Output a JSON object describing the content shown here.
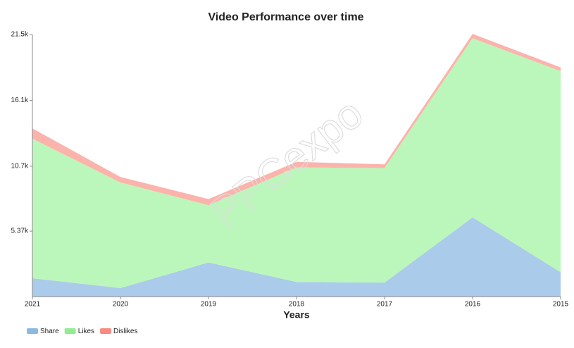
{
  "chart_data": {
    "type": "stacked_area",
    "title": "Video Performance over time",
    "x_label": "Years",
    "watermark": "PPCexpo",
    "categories": [
      "2021",
      "2020",
      "2019",
      "2018",
      "2017",
      "2016",
      "2015"
    ],
    "series": [
      {
        "name": "Share",
        "color": "#abcbea",
        "legend_color": "#8db8e2",
        "values": [
          1500,
          700,
          2800,
          1200,
          1150,
          6500,
          2000
        ]
      },
      {
        "name": "Likes",
        "color": "#bbf7bb",
        "legend_color": "#90ee90",
        "values": [
          11450,
          8660,
          4700,
          9400,
          9400,
          14700,
          16500
        ]
      },
      {
        "name": "Dislikes",
        "color": "#fbb3ab",
        "legend_color": "#f88a80",
        "values": [
          850,
          450,
          500,
          450,
          300,
          350,
          300
        ]
      }
    ],
    "ylim": [
      0,
      21500
    ],
    "yticks": [
      {
        "value": 5370,
        "label": "5.37k"
      },
      {
        "value": 10700,
        "label": "10.7k"
      },
      {
        "value": 16100,
        "label": "16.1k"
      },
      {
        "value": 21500,
        "label": "21.5k"
      }
    ]
  }
}
